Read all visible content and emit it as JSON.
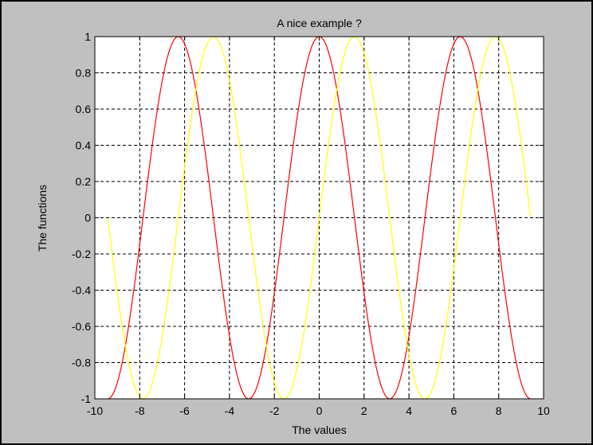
{
  "chart_data": {
    "type": "line",
    "title": "A nice example ?",
    "xlabel": "The values",
    "ylabel": "The functions",
    "xlim": [
      -10,
      10
    ],
    "ylim": [
      -1,
      1
    ],
    "x_ticks": [
      -10,
      -8,
      -6,
      -4,
      -2,
      0,
      2,
      4,
      6,
      8,
      10
    ],
    "y_ticks": [
      -1,
      -0.8,
      -0.6,
      -0.4,
      -0.2,
      0,
      0.2,
      0.4,
      0.6,
      0.8,
      1
    ],
    "grid": true,
    "legend": "none",
    "x_range": [
      -9.42,
      9.42
    ],
    "series": [
      {
        "function": "cos(x)",
        "color": "#ff0000",
        "x": [
          -9.42,
          -8.64,
          -7.85,
          -7.07,
          -6.28,
          -5.5,
          -4.71,
          -3.93,
          -3.14,
          -2.36,
          -1.57,
          -0.79,
          0,
          0.79,
          1.57,
          2.36,
          3.14,
          3.93,
          4.71,
          5.5,
          6.28,
          7.07,
          7.85,
          8.64,
          9.42
        ],
        "y": [
          -1,
          -0.71,
          0,
          0.71,
          1,
          0.71,
          0,
          -0.71,
          -1,
          -0.71,
          0,
          0.71,
          1,
          0.71,
          0,
          -0.71,
          -1,
          -0.71,
          0,
          0.71,
          1,
          0.71,
          0,
          -0.71,
          -1
        ]
      },
      {
        "function": "sin(x)",
        "color": "#ffff00",
        "x": [
          -9.42,
          -8.64,
          -7.85,
          -7.07,
          -6.28,
          -5.5,
          -4.71,
          -3.93,
          -3.14,
          -2.36,
          -1.57,
          -0.79,
          0,
          0.79,
          1.57,
          2.36,
          3.14,
          3.93,
          4.71,
          5.5,
          6.28,
          7.07,
          7.85,
          8.64,
          9.42
        ],
        "y": [
          0,
          -0.71,
          -1,
          -0.71,
          0,
          0.71,
          1,
          0.71,
          0,
          -0.71,
          -1,
          -0.71,
          0,
          0.71,
          1,
          0.71,
          0,
          -0.71,
          -1,
          -0.71,
          0,
          0.71,
          1,
          0.71,
          0
        ]
      }
    ]
  }
}
